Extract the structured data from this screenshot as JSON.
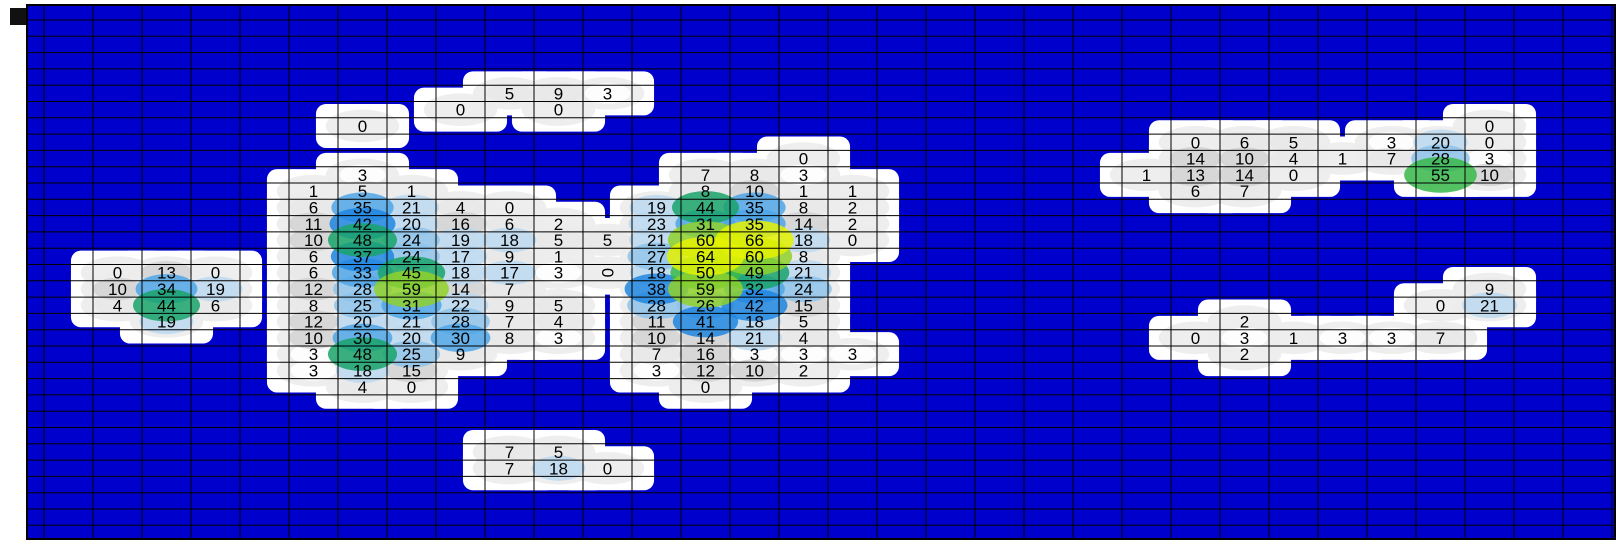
{
  "chart_data": {
    "type": "heatmap",
    "title": "",
    "xlabel": "",
    "ylabel": "",
    "grid": true,
    "colors": {
      "background": "#0000cc",
      "grid_line": "#000000",
      "scale": [
        "#ffffff",
        "#e8e8e8",
        "#d2d2d2",
        "#bcd8ee",
        "#8ec3ea",
        "#4fa6e6",
        "#1f86e0",
        "#19a36a",
        "#38b84a",
        "#8fd12a",
        "#e4f200"
      ]
    },
    "max_value": 66,
    "grid_shape": {
      "columns": 32,
      "rows": 33
    },
    "cells": [
      {
        "col": 9,
        "row": 4,
        "value": 5
      },
      {
        "col": 10,
        "row": 4,
        "value": 9
      },
      {
        "col": 11,
        "row": 4,
        "value": 3
      },
      {
        "col": 6,
        "row": 6,
        "value": 0
      },
      {
        "col": 8,
        "row": 5,
        "value": 0
      },
      {
        "col": 10,
        "row": 5,
        "value": 0
      },
      {
        "col": 6,
        "row": 9,
        "value": 3
      },
      {
        "col": 5,
        "row": 10,
        "value": 1
      },
      {
        "col": 6,
        "row": 10,
        "value": 5
      },
      {
        "col": 7,
        "row": 10,
        "value": 1
      },
      {
        "col": 5,
        "row": 11,
        "value": 6
      },
      {
        "col": 6,
        "row": 11,
        "value": 35
      },
      {
        "col": 7,
        "row": 11,
        "value": 21
      },
      {
        "col": 8,
        "row": 11,
        "value": 4
      },
      {
        "col": 9,
        "row": 11,
        "value": 0
      },
      {
        "col": 5,
        "row": 12,
        "value": 11
      },
      {
        "col": 6,
        "row": 12,
        "value": 42
      },
      {
        "col": 7,
        "row": 12,
        "value": 20
      },
      {
        "col": 8,
        "row": 12,
        "value": 16
      },
      {
        "col": 9,
        "row": 12,
        "value": 6
      },
      {
        "col": 10,
        "row": 12,
        "value": 2
      },
      {
        "col": 5,
        "row": 13,
        "value": 10
      },
      {
        "col": 6,
        "row": 13,
        "value": 48
      },
      {
        "col": 7,
        "row": 13,
        "value": 24
      },
      {
        "col": 8,
        "row": 13,
        "value": 19
      },
      {
        "col": 9,
        "row": 13,
        "value": 18
      },
      {
        "col": 10,
        "row": 13,
        "value": 5
      },
      {
        "col": 11,
        "row": 13,
        "value": 5
      },
      {
        "col": 5,
        "row": 14,
        "value": 6
      },
      {
        "col": 6,
        "row": 14,
        "value": 37
      },
      {
        "col": 7,
        "row": 14,
        "value": 24
      },
      {
        "col": 8,
        "row": 14,
        "value": 17
      },
      {
        "col": 9,
        "row": 14,
        "value": 9
      },
      {
        "col": 10,
        "row": 14,
        "value": 1
      },
      {
        "col": 5,
        "row": 15,
        "value": 6
      },
      {
        "col": 6,
        "row": 15,
        "value": 33
      },
      {
        "col": 7,
        "row": 15,
        "value": 45
      },
      {
        "col": 8,
        "row": 15,
        "value": 18
      },
      {
        "col": 9,
        "row": 15,
        "value": 17
      },
      {
        "col": 10,
        "row": 15,
        "value": 3
      },
      {
        "col": 5,
        "row": 16,
        "value": 12
      },
      {
        "col": 6,
        "row": 16,
        "value": 28
      },
      {
        "col": 7,
        "row": 16,
        "value": 59
      },
      {
        "col": 8,
        "row": 16,
        "value": 14
      },
      {
        "col": 9,
        "row": 16,
        "value": 7
      },
      {
        "col": 5,
        "row": 17,
        "value": 8
      },
      {
        "col": 6,
        "row": 17,
        "value": 25
      },
      {
        "col": 7,
        "row": 17,
        "value": 31
      },
      {
        "col": 8,
        "row": 17,
        "value": 22
      },
      {
        "col": 9,
        "row": 17,
        "value": 9
      },
      {
        "col": 10,
        "row": 17,
        "value": 5
      },
      {
        "col": 5,
        "row": 18,
        "value": 12
      },
      {
        "col": 6,
        "row": 18,
        "value": 20
      },
      {
        "col": 7,
        "row": 18,
        "value": 21
      },
      {
        "col": 8,
        "row": 18,
        "value": 28
      },
      {
        "col": 9,
        "row": 18,
        "value": 7
      },
      {
        "col": 10,
        "row": 18,
        "value": 4
      },
      {
        "col": 5,
        "row": 19,
        "value": 10
      },
      {
        "col": 6,
        "row": 19,
        "value": 30
      },
      {
        "col": 7,
        "row": 19,
        "value": 20
      },
      {
        "col": 8,
        "row": 19,
        "value": 30
      },
      {
        "col": 9,
        "row": 19,
        "value": 8
      },
      {
        "col": 10,
        "row": 19,
        "value": 3
      },
      {
        "col": 5,
        "row": 20,
        "value": 3
      },
      {
        "col": 6,
        "row": 20,
        "value": 48
      },
      {
        "col": 7,
        "row": 20,
        "value": 25
      },
      {
        "col": 8,
        "row": 20,
        "value": 9
      },
      {
        "col": 5,
        "row": 21,
        "value": 3
      },
      {
        "col": 6,
        "row": 21,
        "value": 18
      },
      {
        "col": 7,
        "row": 21,
        "value": 15
      },
      {
        "col": 6,
        "row": 22,
        "value": 4
      },
      {
        "col": 7,
        "row": 22,
        "value": 0
      },
      {
        "col": 15,
        "row": 8,
        "value": 0
      },
      {
        "col": 13,
        "row": 9,
        "value": 7
      },
      {
        "col": 14,
        "row": 9,
        "value": 8
      },
      {
        "col": 15,
        "row": 9,
        "value": 3
      },
      {
        "col": 13,
        "row": 10,
        "value": 8
      },
      {
        "col": 14,
        "row": 10,
        "value": 10
      },
      {
        "col": 15,
        "row": 10,
        "value": 1
      },
      {
        "col": 16,
        "row": 10,
        "value": 1
      },
      {
        "col": 12,
        "row": 11,
        "value": 19
      },
      {
        "col": 13,
        "row": 11,
        "value": 44
      },
      {
        "col": 14,
        "row": 11,
        "value": 35
      },
      {
        "col": 15,
        "row": 11,
        "value": 8
      },
      {
        "col": 16,
        "row": 11,
        "value": 2
      },
      {
        "col": 12,
        "row": 12,
        "value": 23
      },
      {
        "col": 13,
        "row": 12,
        "value": 31
      },
      {
        "col": 14,
        "row": 12,
        "value": 35
      },
      {
        "col": 15,
        "row": 12,
        "value": 14
      },
      {
        "col": 16,
        "row": 12,
        "value": 2
      },
      {
        "col": 12,
        "row": 13,
        "value": 21
      },
      {
        "col": 13,
        "row": 13,
        "value": 60
      },
      {
        "col": 14,
        "row": 13,
        "value": 66
      },
      {
        "col": 15,
        "row": 13,
        "value": 18
      },
      {
        "col": 16,
        "row": 13,
        "value": 0
      },
      {
        "col": 12,
        "row": 14,
        "value": 27
      },
      {
        "col": 13,
        "row": 14,
        "value": 64
      },
      {
        "col": 14,
        "row": 14,
        "value": 60
      },
      {
        "col": 15,
        "row": 14,
        "value": 8
      },
      {
        "col": 11,
        "row": 15,
        "value": 0,
        "rotated": true
      },
      {
        "col": 12,
        "row": 15,
        "value": 18
      },
      {
        "col": 13,
        "row": 15,
        "value": 50
      },
      {
        "col": 14,
        "row": 15,
        "value": 49
      },
      {
        "col": 15,
        "row": 15,
        "value": 21
      },
      {
        "col": 12,
        "row": 16,
        "value": 38
      },
      {
        "col": 13,
        "row": 16,
        "value": 59
      },
      {
        "col": 14,
        "row": 16,
        "value": 32
      },
      {
        "col": 15,
        "row": 16,
        "value": 24
      },
      {
        "col": 12,
        "row": 17,
        "value": 28
      },
      {
        "col": 13,
        "row": 17,
        "value": 26
      },
      {
        "col": 14,
        "row": 17,
        "value": 42
      },
      {
        "col": 15,
        "row": 17,
        "value": 15
      },
      {
        "col": 12,
        "row": 18,
        "value": 11
      },
      {
        "col": 13,
        "row": 18,
        "value": 41
      },
      {
        "col": 14,
        "row": 18,
        "value": 18
      },
      {
        "col": 15,
        "row": 18,
        "value": 5
      },
      {
        "col": 12,
        "row": 19,
        "value": 10
      },
      {
        "col": 13,
        "row": 19,
        "value": 14
      },
      {
        "col": 14,
        "row": 19,
        "value": 21
      },
      {
        "col": 15,
        "row": 19,
        "value": 4
      },
      {
        "col": 12,
        "row": 20,
        "value": 7
      },
      {
        "col": 13,
        "row": 20,
        "value": 16
      },
      {
        "col": 14,
        "row": 20,
        "value": 3
      },
      {
        "col": 15,
        "row": 20,
        "value": 3
      },
      {
        "col": 16,
        "row": 20,
        "value": 3
      },
      {
        "col": 12,
        "row": 21,
        "value": 3
      },
      {
        "col": 13,
        "row": 21,
        "value": 12
      },
      {
        "col": 14,
        "row": 21,
        "value": 10
      },
      {
        "col": 15,
        "row": 21,
        "value": 2
      },
      {
        "col": 13,
        "row": 22,
        "value": 0
      },
      {
        "col": 1,
        "row": 15,
        "value": 0
      },
      {
        "col": 2,
        "row": 15,
        "value": 13
      },
      {
        "col": 3,
        "row": 15,
        "value": 0
      },
      {
        "col": 1,
        "row": 16,
        "value": 10
      },
      {
        "col": 2,
        "row": 16,
        "value": 34
      },
      {
        "col": 3,
        "row": 16,
        "value": 19
      },
      {
        "col": 1,
        "row": 17,
        "value": 4
      },
      {
        "col": 2,
        "row": 17,
        "value": 44
      },
      {
        "col": 3,
        "row": 17,
        "value": 6
      },
      {
        "col": 2,
        "row": 18,
        "value": 19
      },
      {
        "col": 9,
        "row": 26,
        "value": 7
      },
      {
        "col": 10,
        "row": 26,
        "value": 5
      },
      {
        "col": 9,
        "row": 27,
        "value": 7
      },
      {
        "col": 10,
        "row": 27,
        "value": 18
      },
      {
        "col": 11,
        "row": 27,
        "value": 0
      },
      {
        "col": 29,
        "row": 6,
        "value": 0
      },
      {
        "col": 23,
        "row": 7,
        "value": 0
      },
      {
        "col": 24,
        "row": 7,
        "value": 6
      },
      {
        "col": 25,
        "row": 7,
        "value": 5
      },
      {
        "col": 27,
        "row": 7,
        "value": 3
      },
      {
        "col": 28,
        "row": 7,
        "value": 20
      },
      {
        "col": 29,
        "row": 7,
        "value": 0
      },
      {
        "col": 23,
        "row": 8,
        "value": 14
      },
      {
        "col": 24,
        "row": 8,
        "value": 10
      },
      {
        "col": 25,
        "row": 8,
        "value": 4
      },
      {
        "col": 26,
        "row": 8,
        "value": 1
      },
      {
        "col": 27,
        "row": 8,
        "value": 7
      },
      {
        "col": 28,
        "row": 8,
        "value": 28
      },
      {
        "col": 29,
        "row": 8,
        "value": 3
      },
      {
        "col": 22,
        "row": 9,
        "value": 1
      },
      {
        "col": 23,
        "row": 9,
        "value": 13
      },
      {
        "col": 24,
        "row": 9,
        "value": 14
      },
      {
        "col": 25,
        "row": 9,
        "value": 0
      },
      {
        "col": 28,
        "row": 9,
        "value": 55
      },
      {
        "col": 29,
        "row": 9,
        "value": 10
      },
      {
        "col": 23,
        "row": 10,
        "value": 6
      },
      {
        "col": 24,
        "row": 10,
        "value": 7
      },
      {
        "col": 29,
        "row": 16,
        "value": 9
      },
      {
        "col": 28,
        "row": 17,
        "value": 0
      },
      {
        "col": 29,
        "row": 17,
        "value": 21
      },
      {
        "col": 24,
        "row": 18,
        "value": 2
      },
      {
        "col": 23,
        "row": 19,
        "value": 0
      },
      {
        "col": 24,
        "row": 19,
        "value": 3
      },
      {
        "col": 25,
        "row": 19,
        "value": 1
      },
      {
        "col": 26,
        "row": 19,
        "value": 3
      },
      {
        "col": 27,
        "row": 19,
        "value": 3
      },
      {
        "col": 28,
        "row": 19,
        "value": 7
      },
      {
        "col": 24,
        "row": 20,
        "value": 2
      }
    ]
  }
}
